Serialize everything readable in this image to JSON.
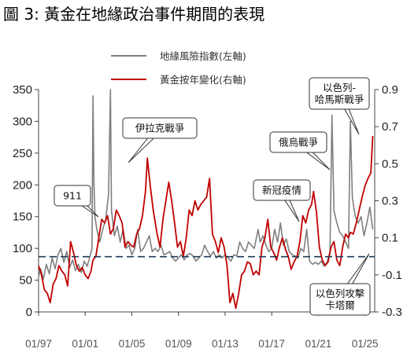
{
  "title": "圖 3: 黃金在地緣政治事件期間的表現",
  "chart_data": {
    "type": "line",
    "title": "圖 3: 黃金在地緣政治事件期間的表現",
    "x_ticks": [
      "01/97",
      "01/01",
      "01/05",
      "01/09",
      "01/13",
      "01/17",
      "01/21",
      "01/25"
    ],
    "y_left": {
      "min": 0,
      "max": 350,
      "ticks": [
        0,
        50,
        100,
        150,
        200,
        250,
        300,
        350
      ]
    },
    "y_right": {
      "min": -0.3,
      "max": 0.9,
      "ticks": [
        "-0.3",
        "-0.1",
        "0.1",
        "0.3",
        "0.5",
        "0.7",
        "0.9"
      ]
    },
    "reference_line": {
      "axis": "left",
      "value": 87
    },
    "legend_placement": "top-center",
    "colors": {
      "risk": "#7f7f7f",
      "gold": "#c00000",
      "reference": "#1f3b57"
    },
    "series": [
      {
        "name": "地緣風險指數(左軸)",
        "axis": "left",
        "points": [
          [
            "1997-01",
            55
          ],
          [
            "1997-03",
            68
          ],
          [
            "1997-06",
            52
          ],
          [
            "1997-09",
            75
          ],
          [
            "1997-12",
            60
          ],
          [
            "1998-03",
            85
          ],
          [
            "1998-06",
            68
          ],
          [
            "1998-09",
            90
          ],
          [
            "1998-12",
            100
          ],
          [
            "1999-03",
            78
          ],
          [
            "1999-06",
            95
          ],
          [
            "1999-09",
            70
          ],
          [
            "1999-12",
            82
          ],
          [
            "2000-03",
            65
          ],
          [
            "2000-06",
            75
          ],
          [
            "2000-09",
            62
          ],
          [
            "2000-12",
            80
          ],
          [
            "2001-03",
            72
          ],
          [
            "2001-06",
            88
          ],
          [
            "2001-08",
            100
          ],
          [
            "2001-09",
            340
          ],
          [
            "2001-10",
            205
          ],
          [
            "2001-11",
            150
          ],
          [
            "2002-01",
            130
          ],
          [
            "2002-04",
            110
          ],
          [
            "2002-07",
            130
          ],
          [
            "2002-10",
            145
          ],
          [
            "2003-01",
            185
          ],
          [
            "2003-03",
            350
          ],
          [
            "2003-04",
            160
          ],
          [
            "2003-07",
            120
          ],
          [
            "2003-10",
            135
          ],
          [
            "2004-01",
            110
          ],
          [
            "2004-04",
            130
          ],
          [
            "2004-07",
            100
          ],
          [
            "2004-10",
            105
          ],
          [
            "2005-01",
            90
          ],
          [
            "2005-04",
            100
          ],
          [
            "2005-07",
            130
          ],
          [
            "2005-10",
            95
          ],
          [
            "2006-01",
            100
          ],
          [
            "2006-04",
            110
          ],
          [
            "2006-07",
            120
          ],
          [
            "2006-10",
            95
          ],
          [
            "2007-01",
            100
          ],
          [
            "2007-04",
            95
          ],
          [
            "2007-07",
            105
          ],
          [
            "2007-10",
            90
          ],
          [
            "2008-01",
            92
          ],
          [
            "2008-04",
            95
          ],
          [
            "2008-07",
            85
          ],
          [
            "2008-10",
            80
          ],
          [
            "2009-01",
            85
          ],
          [
            "2009-04",
            90
          ],
          [
            "2009-07",
            82
          ],
          [
            "2009-10",
            90
          ],
          [
            "2010-01",
            92
          ],
          [
            "2010-04",
            88
          ],
          [
            "2010-07",
            80
          ],
          [
            "2010-10",
            85
          ],
          [
            "2011-01",
            90
          ],
          [
            "2011-04",
            105
          ],
          [
            "2011-07",
            95
          ],
          [
            "2011-10",
            88
          ],
          [
            "2012-01",
            95
          ],
          [
            "2012-04",
            85
          ],
          [
            "2012-07",
            90
          ],
          [
            "2012-10",
            85
          ],
          [
            "2013-01",
            90
          ],
          [
            "2013-04",
            85
          ],
          [
            "2013-07",
            80
          ],
          [
            "2013-10",
            90
          ],
          [
            "2014-01",
            88
          ],
          [
            "2014-04",
            110
          ],
          [
            "2014-07",
            100
          ],
          [
            "2014-10",
            95
          ],
          [
            "2015-01",
            110
          ],
          [
            "2015-04",
            105
          ],
          [
            "2015-07",
            100
          ],
          [
            "2015-11",
            130
          ],
          [
            "2016-01",
            110
          ],
          [
            "2016-04",
            120
          ],
          [
            "2016-07",
            105
          ],
          [
            "2016-10",
            95
          ],
          [
            "2017-01",
            100
          ],
          [
            "2017-04",
            130
          ],
          [
            "2017-07",
            110
          ],
          [
            "2017-10",
            140
          ],
          [
            "2018-01",
            105
          ],
          [
            "2018-04",
            115
          ],
          [
            "2018-07",
            95
          ],
          [
            "2018-10",
            90
          ],
          [
            "2019-01",
            88
          ],
          [
            "2019-04",
            85
          ],
          [
            "2019-07",
            100
          ],
          [
            "2019-10",
            95
          ],
          [
            "2020-01",
            130
          ],
          [
            "2020-04",
            80
          ],
          [
            "2020-07",
            75
          ],
          [
            "2020-10",
            78
          ],
          [
            "2021-01",
            75
          ],
          [
            "2021-04",
            80
          ],
          [
            "2021-07",
            72
          ],
          [
            "2021-10",
            78
          ],
          [
            "2022-01",
            95
          ],
          [
            "2022-03",
            310
          ],
          [
            "2022-05",
            160
          ],
          [
            "2022-08",
            140
          ],
          [
            "2022-11",
            125
          ],
          [
            "2023-02",
            120
          ],
          [
            "2023-05",
            110
          ],
          [
            "2023-08",
            100
          ],
          [
            "2023-10",
            300
          ],
          [
            "2023-12",
            180
          ],
          [
            "2024-03",
            150
          ],
          [
            "2024-06",
            140
          ],
          [
            "2024-09",
            150
          ],
          [
            "2024-12",
            120
          ],
          [
            "2025-03",
            140
          ],
          [
            "2025-06",
            165
          ],
          [
            "2025-09",
            130
          ]
        ]
      },
      {
        "name": "黃金按年變化(右軸)",
        "axis": "right",
        "points": [
          [
            "1997-01",
            -0.05
          ],
          [
            "1997-04",
            -0.1
          ],
          [
            "1997-07",
            -0.18
          ],
          [
            "1997-10",
            -0.2
          ],
          [
            "1998-01",
            -0.25
          ],
          [
            "1998-04",
            -0.15
          ],
          [
            "1998-07",
            -0.12
          ],
          [
            "1998-10",
            -0.05
          ],
          [
            "1999-01",
            -0.08
          ],
          [
            "1999-04",
            -0.1
          ],
          [
            "1999-07",
            -0.16
          ],
          [
            "1999-10",
            0.08
          ],
          [
            "2000-01",
            0.02
          ],
          [
            "2000-04",
            -0.05
          ],
          [
            "2000-07",
            -0.08
          ],
          [
            "2000-10",
            -0.06
          ],
          [
            "2001-01",
            -0.1
          ],
          [
            "2001-04",
            -0.12
          ],
          [
            "2001-07",
            -0.08
          ],
          [
            "2001-09",
            -0.02
          ],
          [
            "2001-12",
            0.0
          ],
          [
            "2002-03",
            0.1
          ],
          [
            "2002-06",
            0.2
          ],
          [
            "2002-09",
            0.18
          ],
          [
            "2002-12",
            0.22
          ],
          [
            "2003-03",
            0.12
          ],
          [
            "2003-06",
            0.15
          ],
          [
            "2003-09",
            0.25
          ],
          [
            "2003-12",
            0.22
          ],
          [
            "2004-03",
            0.18
          ],
          [
            "2004-06",
            0.05
          ],
          [
            "2004-09",
            0.08
          ],
          [
            "2004-12",
            0.06
          ],
          [
            "2005-03",
            0.05
          ],
          [
            "2005-06",
            0.12
          ],
          [
            "2005-09",
            0.15
          ],
          [
            "2005-12",
            0.22
          ],
          [
            "2006-03",
            0.35
          ],
          [
            "2006-05",
            0.53
          ],
          [
            "2006-08",
            0.38
          ],
          [
            "2006-11",
            0.25
          ],
          [
            "2007-03",
            0.12
          ],
          [
            "2007-06",
            0.05
          ],
          [
            "2007-09",
            0.2
          ],
          [
            "2007-12",
            0.3
          ],
          [
            "2008-03",
            0.4
          ],
          [
            "2008-06",
            0.3
          ],
          [
            "2008-09",
            0.18
          ],
          [
            "2008-12",
            0.05
          ],
          [
            "2009-03",
            0.08
          ],
          [
            "2009-06",
            0.0
          ],
          [
            "2009-09",
            0.1
          ],
          [
            "2009-12",
            0.25
          ],
          [
            "2010-03",
            0.22
          ],
          [
            "2010-06",
            0.3
          ],
          [
            "2010-09",
            0.25
          ],
          [
            "2010-12",
            0.28
          ],
          [
            "2011-03",
            0.3
          ],
          [
            "2011-06",
            0.32
          ],
          [
            "2011-09",
            0.42
          ],
          [
            "2011-12",
            0.12
          ],
          [
            "2012-03",
            0.08
          ],
          [
            "2012-06",
            0.02
          ],
          [
            "2012-09",
            0.1
          ],
          [
            "2012-12",
            0.05
          ],
          [
            "2013-03",
            -0.05
          ],
          [
            "2013-06",
            -0.25
          ],
          [
            "2013-09",
            -0.2
          ],
          [
            "2013-12",
            -0.28
          ],
          [
            "2014-03",
            -0.2
          ],
          [
            "2014-06",
            -0.1
          ],
          [
            "2014-09",
            -0.08
          ],
          [
            "2014-12",
            -0.03
          ],
          [
            "2015-03",
            -0.04
          ],
          [
            "2015-06",
            -0.1
          ],
          [
            "2015-09",
            -0.08
          ],
          [
            "2015-12",
            -0.1
          ],
          [
            "2016-03",
            0.05
          ],
          [
            "2016-06",
            0.1
          ],
          [
            "2016-09",
            0.2
          ],
          [
            "2016-12",
            0.05
          ],
          [
            "2017-03",
            0.02
          ],
          [
            "2017-06",
            -0.02
          ],
          [
            "2017-09",
            0.05
          ],
          [
            "2017-12",
            0.1
          ],
          [
            "2018-03",
            0.04
          ],
          [
            "2018-06",
            0.0
          ],
          [
            "2018-09",
            -0.07
          ],
          [
            "2018-12",
            -0.03
          ],
          [
            "2019-03",
            0.0
          ],
          [
            "2019-06",
            0.08
          ],
          [
            "2019-09",
            0.22
          ],
          [
            "2019-12",
            0.18
          ],
          [
            "2020-03",
            0.25
          ],
          [
            "2020-06",
            0.28
          ],
          [
            "2020-08",
            0.35
          ],
          [
            "2020-11",
            0.24
          ],
          [
            "2021-02",
            0.05
          ],
          [
            "2021-05",
            -0.02
          ],
          [
            "2021-08",
            -0.05
          ],
          [
            "2021-11",
            -0.03
          ],
          [
            "2022-02",
            0.05
          ],
          [
            "2022-05",
            0.08
          ],
          [
            "2022-08",
            -0.02
          ],
          [
            "2022-11",
            -0.05
          ],
          [
            "2023-02",
            0.05
          ],
          [
            "2023-05",
            0.12
          ],
          [
            "2023-08",
            0.1
          ],
          [
            "2023-10",
            0.13
          ],
          [
            "2024-01",
            0.12
          ],
          [
            "2024-04",
            0.18
          ],
          [
            "2024-07",
            0.25
          ],
          [
            "2024-10",
            0.32
          ],
          [
            "2025-01",
            0.38
          ],
          [
            "2025-04",
            0.42
          ],
          [
            "2025-07",
            0.45
          ],
          [
            "2025-09",
            0.65
          ]
        ]
      }
    ],
    "annotations": [
      {
        "id": "911",
        "lines": [
          "911"
        ]
      },
      {
        "id": "iraq",
        "lines": [
          "伊拉克戰爭"
        ]
      },
      {
        "id": "covid",
        "lines": [
          "新冠疫情"
        ]
      },
      {
        "id": "ukraine",
        "lines": [
          "俄烏戰爭"
        ]
      },
      {
        "id": "hamas",
        "lines": [
          "以色列-",
          "哈馬斯戰爭"
        ]
      },
      {
        "id": "qatar",
        "lines": [
          "以色列攻擊",
          "卡塔爾"
        ]
      }
    ]
  }
}
